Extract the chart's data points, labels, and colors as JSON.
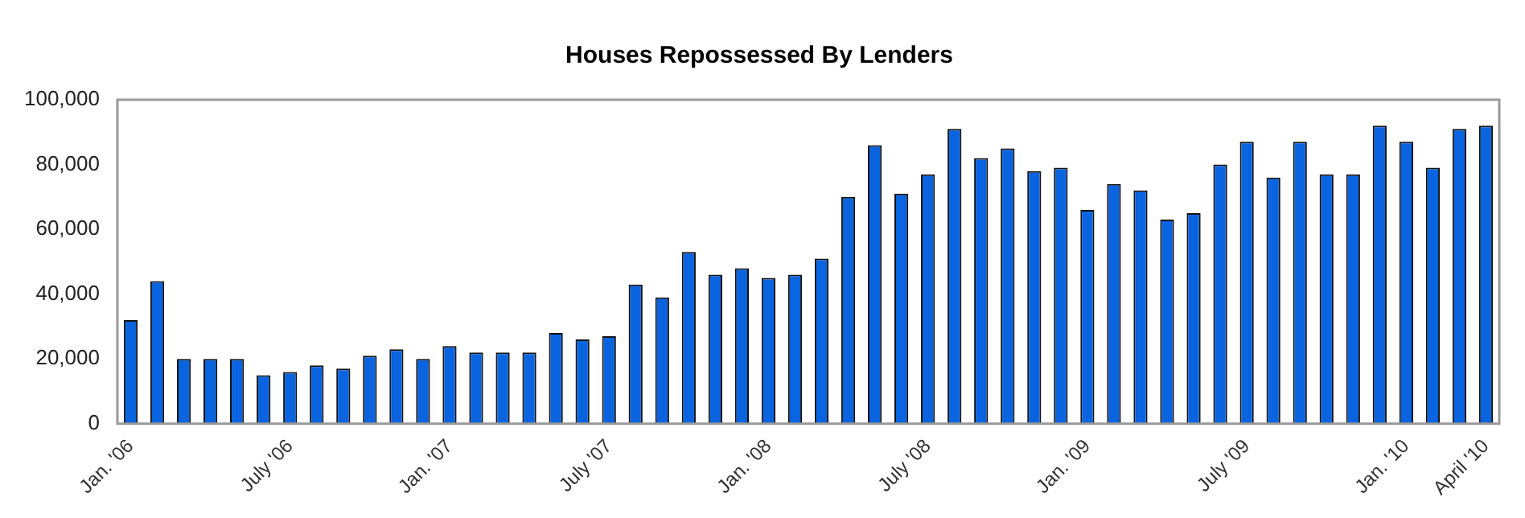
{
  "chart_data": {
    "type": "bar",
    "title": "Houses Repossessed By Lenders",
    "categories": [
      "Jan. '06",
      null,
      null,
      null,
      null,
      null,
      "July '06",
      null,
      null,
      null,
      null,
      null,
      "Jan. '07",
      null,
      null,
      null,
      null,
      null,
      "July '07",
      null,
      null,
      null,
      null,
      null,
      "Jan. '08",
      null,
      null,
      null,
      null,
      null,
      "July '08",
      null,
      null,
      null,
      null,
      null,
      "Jan. '09",
      null,
      null,
      null,
      null,
      null,
      "July '09",
      null,
      null,
      null,
      null,
      null,
      "Jan. '10",
      null,
      null,
      "April '10"
    ],
    "values": [
      32000,
      44000,
      20000,
      20000,
      20000,
      15000,
      16000,
      18000,
      17000,
      21000,
      23000,
      20000,
      24000,
      22000,
      22000,
      22000,
      28000,
      26000,
      27000,
      43000,
      39000,
      53000,
      46000,
      48000,
      45000,
      46000,
      51000,
      70000,
      86000,
      71000,
      77000,
      91000,
      82000,
      85000,
      78000,
      79000,
      66000,
      74000,
      72000,
      63000,
      65000,
      80000,
      87000,
      76000,
      87000,
      77000,
      77000,
      92000,
      87000,
      79000,
      91000,
      92000
    ],
    "color": "#0a64e0",
    "ylim": [
      0,
      100000
    ],
    "yticks": [
      0,
      {
        "value": 20000,
        "label": "20,000"
      },
      {
        "value": 40000,
        "label": "40,000"
      },
      {
        "value": 60000,
        "label": "60,000"
      },
      {
        "value": 80000,
        "label": "80,000"
      },
      {
        "value": 100000,
        "label": "100,000"
      }
    ],
    "grid": false,
    "legend": false
  }
}
